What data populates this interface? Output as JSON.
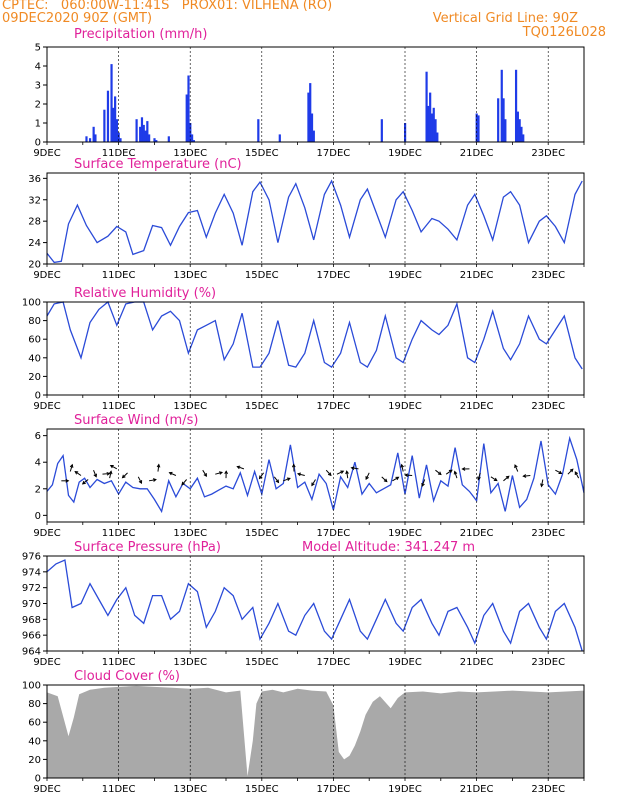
{
  "header": {
    "line1_left": "CPTEC:   060:00W-11:41S   PROX01: VILHENA (RO)",
    "line2_left": "09DEC2020 90Z (GMT)",
    "line2_right": "Vertical Grid Line: 90Z",
    "line3_right": "TQ0126L028",
    "model_altitude": "Model Altitude: 341.247 m"
  },
  "x_tick_labels": [
    "9DEC",
    "11DEC",
    "13DEC",
    "15DEC",
    "17DEC",
    "19DEC",
    "21DEC",
    "23DEC"
  ],
  "chart_data": [
    {
      "type": "bar",
      "title": "Precipitation (mm/h)",
      "ylim": [
        0,
        5
      ],
      "yticks": [
        0,
        1,
        2,
        3,
        4,
        5
      ],
      "color": "#1f3be8",
      "x_range_days": [
        9,
        24
      ],
      "x": [
        10.1,
        10.2,
        10.3,
        10.35,
        10.6,
        10.7,
        10.8,
        10.85,
        10.9,
        10.95,
        11.0,
        11.05,
        11.5,
        11.6,
        11.65,
        11.7,
        11.75,
        11.8,
        11.85,
        12.0,
        12.05,
        12.4,
        12.9,
        12.95,
        13.0,
        13.05,
        13.1,
        14.9,
        15.5,
        16.3,
        16.35,
        16.4,
        16.45,
        18.35,
        19.0,
        19.6,
        19.65,
        19.7,
        19.75,
        19.8,
        19.85,
        19.9,
        21.0,
        21.05,
        21.6,
        21.7,
        21.75,
        21.8,
        22.1,
        22.15,
        22.2,
        22.25,
        22.3
      ],
      "values": [
        0.3,
        0.2,
        0.8,
        0.4,
        1.7,
        2.7,
        4.1,
        1.8,
        2.4,
        1.2,
        0.5,
        0.2,
        1.2,
        0.8,
        1.3,
        0.9,
        0.6,
        1.1,
        0.4,
        0.2,
        0.1,
        0.3,
        2.5,
        3.5,
        1.0,
        0.4,
        0.1,
        1.2,
        0.4,
        2.6,
        3.1,
        1.5,
        0.6,
        1.2,
        1.0,
        3.7,
        1.9,
        2.6,
        1.5,
        1.8,
        1.2,
        0.5,
        1.5,
        1.4,
        2.3,
        3.8,
        2.3,
        1.2,
        3.8,
        1.6,
        1.2,
        0.8,
        0.4
      ]
    },
    {
      "type": "line",
      "title": "Surface Temperature (nC)",
      "ylim": [
        20,
        37
      ],
      "yticks": [
        20,
        24,
        28,
        32,
        36
      ],
      "color": "#2b4bd8",
      "x": [
        9.0,
        9.2,
        9.4,
        9.6,
        9.85,
        10.1,
        10.4,
        10.7,
        10.95,
        11.2,
        11.4,
        11.7,
        11.95,
        12.2,
        12.45,
        12.7,
        12.95,
        13.2,
        13.45,
        13.7,
        13.95,
        14.2,
        14.45,
        14.75,
        14.95,
        15.2,
        15.45,
        15.75,
        15.95,
        16.2,
        16.45,
        16.75,
        16.95,
        17.2,
        17.45,
        17.75,
        17.95,
        18.2,
        18.45,
        18.75,
        18.95,
        19.2,
        19.45,
        19.75,
        19.95,
        20.2,
        20.45,
        20.75,
        20.95,
        21.2,
        21.45,
        21.75,
        21.95,
        22.2,
        22.45,
        22.75,
        22.95,
        23.2,
        23.45,
        23.75,
        23.95
      ],
      "values": [
        22.0,
        20.3,
        20.5,
        27.5,
        31.0,
        27.2,
        24.0,
        25.2,
        27.0,
        26.0,
        21.8,
        22.5,
        27.2,
        26.8,
        23.5,
        27.0,
        29.6,
        30.0,
        25.0,
        29.5,
        33.0,
        29.5,
        23.5,
        33.5,
        35.3,
        32.0,
        24.0,
        32.5,
        35.0,
        30.5,
        24.5,
        33.0,
        35.5,
        31.0,
        25.0,
        32.0,
        34.0,
        29.5,
        25.0,
        32.0,
        33.5,
        30.0,
        26.0,
        28.5,
        28.0,
        26.5,
        24.5,
        31.0,
        33.0,
        29.0,
        24.5,
        32.5,
        33.5,
        31.0,
        24.0,
        28.0,
        29.0,
        27.0,
        24.0,
        33.0,
        35.5
      ]
    },
    {
      "type": "line",
      "title": "Relative Humidity (%)",
      "ylim": [
        0,
        100
      ],
      "yticks": [
        0,
        20,
        40,
        60,
        80,
        100
      ],
      "color": "#2b4bd8",
      "x": [
        9.0,
        9.2,
        9.45,
        9.65,
        9.95,
        10.2,
        10.45,
        10.7,
        10.95,
        11.2,
        11.45,
        11.7,
        11.95,
        12.2,
        12.45,
        12.7,
        12.95,
        13.2,
        13.45,
        13.7,
        13.95,
        14.2,
        14.45,
        14.75,
        14.95,
        15.2,
        15.45,
        15.75,
        15.95,
        16.2,
        16.45,
        16.75,
        16.95,
        17.2,
        17.45,
        17.75,
        17.95,
        18.2,
        18.45,
        18.75,
        18.95,
        19.2,
        19.45,
        19.75,
        19.95,
        20.2,
        20.45,
        20.75,
        20.95,
        21.2,
        21.45,
        21.75,
        21.95,
        22.2,
        22.45,
        22.75,
        22.95,
        23.2,
        23.45,
        23.75,
        23.95
      ],
      "values": [
        85,
        98,
        100,
        70,
        40,
        78,
        92,
        100,
        75,
        98,
        100,
        100,
        70,
        85,
        90,
        80,
        45,
        70,
        75,
        80,
        38,
        55,
        88,
        30,
        30,
        45,
        80,
        32,
        30,
        45,
        80,
        35,
        30,
        45,
        78,
        35,
        30,
        48,
        85,
        40,
        35,
        60,
        80,
        70,
        65,
        75,
        98,
        40,
        35,
        60,
        90,
        50,
        38,
        55,
        85,
        60,
        55,
        70,
        85,
        40,
        28
      ]
    },
    {
      "type": "line",
      "title": "Surface Wind (m/s)",
      "ylim": [
        -0.5,
        6.5
      ],
      "yticks": [
        0,
        2,
        4,
        6
      ],
      "color": "#2b4bd8",
      "arrow_color": "#000000",
      "x": [
        9.0,
        9.15,
        9.3,
        9.45,
        9.6,
        9.75,
        9.9,
        10.05,
        10.2,
        10.4,
        10.6,
        10.8,
        11.0,
        11.2,
        11.4,
        11.6,
        11.8,
        12.0,
        12.2,
        12.4,
        12.6,
        12.8,
        13.0,
        13.2,
        13.4,
        13.6,
        13.8,
        14.0,
        14.2,
        14.4,
        14.6,
        14.8,
        15.0,
        15.2,
        15.4,
        15.6,
        15.8,
        16.0,
        16.2,
        16.4,
        16.6,
        16.8,
        17.0,
        17.2,
        17.4,
        17.6,
        17.8,
        18.0,
        18.2,
        18.4,
        18.6,
        18.8,
        19.0,
        19.2,
        19.4,
        19.6,
        19.8,
        20.0,
        20.2,
        20.4,
        20.6,
        20.8,
        21.0,
        21.2,
        21.4,
        21.6,
        21.8,
        22.0,
        22.2,
        22.4,
        22.6,
        22.8,
        23.0,
        23.2,
        23.4,
        23.6,
        23.8,
        24.0
      ],
      "values": [
        1.8,
        2.3,
        3.9,
        4.5,
        1.5,
        1.0,
        2.5,
        2.8,
        2.1,
        2.7,
        2.4,
        2.6,
        1.6,
        2.5,
        2.1,
        2.0,
        2.0,
        1.2,
        0.3,
        2.6,
        1.4,
        2.4,
        2.0,
        2.8,
        1.4,
        1.6,
        1.9,
        2.2,
        2.0,
        3.2,
        1.5,
        3.3,
        1.6,
        4.2,
        2.0,
        2.4,
        5.3,
        2.1,
        2.5,
        1.2,
        3.1,
        2.4,
        0.4,
        2.9,
        2.1,
        4.0,
        1.6,
        2.4,
        1.7,
        2.0,
        2.3,
        4.7,
        1.6,
        4.5,
        1.3,
        3.8,
        1.1,
        2.6,
        2.2,
        5.1,
        2.3,
        1.8,
        1.1,
        5.4,
        1.7,
        2.4,
        0.3,
        3.0,
        0.6,
        1.2,
        2.8,
        5.6,
        2.3,
        1.6,
        3.1,
        5.8,
        4.2,
        1.7
      ],
      "arrows_x": [
        9.4,
        9.65,
        9.95,
        10.15,
        10.3,
        10.55,
        10.75,
        10.95,
        11.25,
        11.55,
        11.85,
        12.1,
        12.6,
        12.9,
        13.35,
        13.7,
        14.0,
        14.5,
        15.05,
        15.35,
        15.6,
        15.9,
        16.2,
        16.5,
        16.8,
        17.1,
        17.4,
        17.7,
        18.0,
        18.35,
        18.65,
        18.95,
        19.2,
        19.55,
        19.85,
        20.15,
        20.45,
        20.8,
        21.1,
        21.4,
        21.75,
        22.15,
        22.5,
        22.85,
        23.2,
        23.55,
        23.85
      ]
    },
    {
      "type": "line",
      "title": "Surface Pressure (hPa)",
      "ylim": [
        964,
        976
      ],
      "yticks": [
        964,
        966,
        968,
        970,
        972,
        974,
        976
      ],
      "color": "#2b4bd8",
      "x": [
        9.0,
        9.25,
        9.5,
        9.7,
        9.95,
        10.2,
        10.45,
        10.7,
        10.95,
        11.2,
        11.45,
        11.7,
        11.95,
        12.2,
        12.45,
        12.7,
        12.95,
        13.2,
        13.45,
        13.7,
        13.95,
        14.2,
        14.45,
        14.75,
        14.95,
        15.2,
        15.45,
        15.75,
        15.95,
        16.2,
        16.45,
        16.75,
        16.95,
        17.2,
        17.45,
        17.75,
        17.95,
        18.2,
        18.45,
        18.75,
        18.95,
        19.2,
        19.45,
        19.75,
        19.95,
        20.2,
        20.45,
        20.75,
        20.95,
        21.2,
        21.45,
        21.75,
        21.95,
        22.2,
        22.45,
        22.75,
        22.95,
        23.2,
        23.45,
        23.75,
        23.95
      ],
      "values": [
        974.0,
        975.0,
        975.5,
        969.5,
        970.0,
        972.5,
        970.5,
        968.5,
        970.5,
        972.0,
        968.5,
        967.5,
        971.0,
        971.0,
        968.0,
        969.0,
        972.5,
        971.5,
        967.0,
        969.0,
        972.0,
        971.0,
        968.0,
        969.5,
        965.5,
        967.5,
        970.0,
        966.5,
        966.0,
        968.5,
        970.0,
        966.5,
        965.5,
        968.0,
        970.5,
        966.5,
        965.5,
        968.0,
        970.5,
        967.5,
        966.5,
        969.5,
        970.5,
        967.5,
        966.0,
        969.0,
        969.5,
        967.0,
        965.0,
        968.5,
        970.0,
        966.5,
        965.0,
        969.0,
        970.0,
        967.0,
        965.5,
        969.0,
        970.0,
        967.0,
        964.0
      ]
    },
    {
      "type": "area",
      "title": "Cloud Cover (%)",
      "ylim": [
        0,
        100
      ],
      "yticks": [
        0,
        20,
        40,
        60,
        80,
        100
      ],
      "color": "#a9a9a9",
      "x": [
        9.0,
        9.3,
        9.6,
        9.75,
        9.9,
        10.2,
        10.6,
        11.0,
        11.5,
        12.0,
        12.5,
        13.0,
        13.5,
        14.0,
        14.4,
        14.6,
        14.75,
        14.85,
        15.0,
        15.3,
        15.6,
        16.0,
        16.4,
        16.8,
        17.0,
        17.15,
        17.3,
        17.45,
        17.6,
        17.75,
        17.9,
        18.1,
        18.3,
        18.6,
        18.8,
        19.0,
        19.5,
        20.0,
        20.5,
        21.0,
        21.5,
        22.0,
        22.5,
        23.0,
        23.5,
        24.0
      ],
      "values": [
        92,
        88,
        45,
        65,
        90,
        95,
        97,
        98,
        99,
        98,
        97,
        96,
        97,
        92,
        94,
        2,
        40,
        80,
        93,
        95,
        92,
        96,
        94,
        93,
        78,
        28,
        20,
        24,
        35,
        50,
        68,
        82,
        88,
        75,
        86,
        92,
        93,
        91,
        93,
        92,
        93,
        94,
        93,
        92,
        93,
        94
      ]
    }
  ]
}
